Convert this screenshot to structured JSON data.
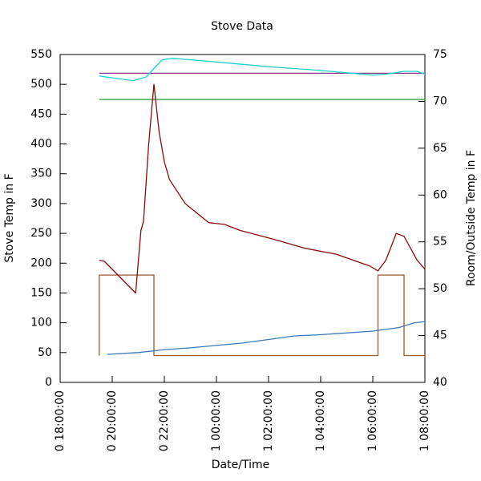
{
  "chart_data": {
    "type": "line",
    "title": "Stove Data",
    "x_label": "Date/Time",
    "y_label": "Stove Temp in F",
    "y2_label": "Room/Outside Temp in F",
    "xlim": [
      18,
      32
    ],
    "xticks": [
      {
        "value": 18,
        "label": "0 18:00:00"
      },
      {
        "value": 20,
        "label": "0 20:00:00"
      },
      {
        "value": 22,
        "label": "0 22:00:00"
      },
      {
        "value": 24,
        "label": "1 00:00:00"
      },
      {
        "value": 26,
        "label": "1 02:00:00"
      },
      {
        "value": 28,
        "label": "1 04:00:00"
      },
      {
        "value": 30,
        "label": "1 06:00:00"
      },
      {
        "value": 32,
        "label": "1 08:00:00"
      }
    ],
    "ylim": [
      0,
      550
    ],
    "yticks": [
      0,
      50,
      100,
      150,
      200,
      250,
      300,
      350,
      400,
      450,
      500,
      550
    ],
    "y2lim": [
      40,
      75
    ],
    "y2ticks": [
      40,
      45,
      50,
      55,
      60,
      65,
      70,
      75
    ],
    "grid": false,
    "series": [
      {
        "color": "#2e9b2e",
        "axis": "y2",
        "x": [
          19.5,
          32
        ],
        "values": [
          70.2,
          70.2
        ]
      },
      {
        "color": "#8b3a8b",
        "axis": "y2",
        "x": [
          19.5,
          32
        ],
        "values": [
          73,
          73
        ]
      },
      {
        "color": "#20d0d0",
        "axis": "y2",
        "x": [
          19.5,
          20.3,
          20.8,
          21.3,
          21.6,
          21.9,
          22.3,
          24,
          26,
          28,
          30,
          30.5,
          31.2,
          31.7,
          32
        ],
        "values": [
          72.7,
          72.4,
          72.2,
          72.6,
          73.5,
          74.4,
          74.6,
          74.2,
          73.7,
          73.3,
          72.8,
          72.9,
          73.2,
          73.2,
          72.9
        ]
      },
      {
        "color": "#3a7ab8",
        "x": [
          19.8,
          21,
          22,
          23,
          24,
          25,
          26,
          27,
          28,
          29,
          30,
          31,
          31.6,
          32
        ],
        "values": [
          47,
          50,
          55,
          58,
          62,
          66,
          72,
          78,
          80,
          83,
          86,
          92,
          100,
          102
        ]
      },
      {
        "color": "#9a5a30",
        "x": [
          19.5,
          19.5,
          21.6,
          21.6,
          30.2,
          30.2,
          31.2,
          31.2,
          32
        ],
        "values": [
          45,
          180,
          180,
          45,
          45,
          180,
          180,
          45,
          45
        ]
      },
      {
        "color": "#8b0a0a",
        "x": [
          19.5,
          19.7,
          20.9,
          21.1,
          21.2,
          21.4,
          21.6,
          21.8,
          22.0,
          22.2,
          22.8,
          23.7,
          24.3,
          24.9,
          26.2,
          27.4,
          28.6,
          29.9,
          30.2,
          30.5,
          30.9,
          31.2,
          31.7,
          32
        ],
        "values": [
          205,
          203,
          150,
          255,
          270,
          400,
          500,
          420,
          370,
          340,
          300,
          268,
          265,
          255,
          240,
          225,
          215,
          195,
          187,
          205,
          250,
          245,
          205,
          190
        ]
      }
    ]
  }
}
